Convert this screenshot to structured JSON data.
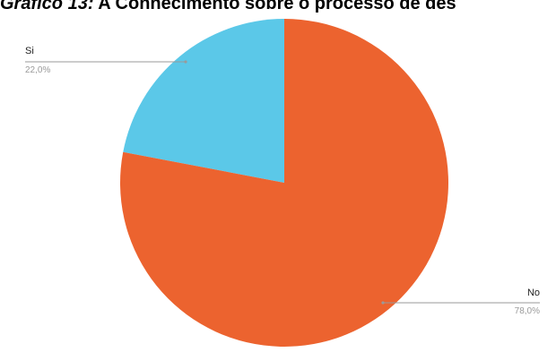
{
  "header": {
    "title_lead": "Gráfico 13:",
    "title_rest": " A Conhecimento sobre o processo de des"
  },
  "chart_data": {
    "type": "pie",
    "categories": [
      "Si",
      "No"
    ],
    "values": [
      22.0,
      78.0
    ],
    "value_labels": [
      "22,0%",
      "78,0%"
    ],
    "colors": [
      "#5BC8E8",
      "#EC632F"
    ],
    "start_angle_deg": 0,
    "direction": "counterclockwise",
    "legend": "none",
    "title": "Gráfico 13: A Conhecimento sobre o processo de des"
  }
}
